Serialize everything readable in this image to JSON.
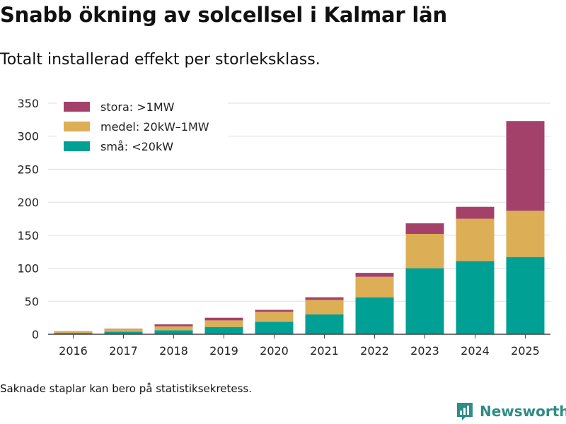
{
  "title": "Snabb ökning av solcellsel i Kalmar län",
  "subtitle": "Totalt installerad effekt per storleksklass.",
  "note": "Saknade staplar kan bero på statistiksekretess.",
  "brand": {
    "name": "Newsworthy",
    "icon": "newsworthy-logo-icon"
  },
  "chart_data": {
    "type": "bar",
    "stacked": true,
    "title": "Snabb ökning av solcellsel i Kalmar län",
    "subtitle": "Totalt installerad effekt per storleksklass.",
    "xlabel": "",
    "ylabel": "",
    "ylim": [
      0,
      350
    ],
    "yticks": [
      0,
      50,
      100,
      150,
      200,
      250,
      300,
      350
    ],
    "grid": true,
    "legend_position": "top-left",
    "categories": [
      "2016",
      "2017",
      "2018",
      "2019",
      "2020",
      "2021",
      "2022",
      "2023",
      "2024",
      "2025"
    ],
    "series": [
      {
        "name": "små: <20kW",
        "color": "#00a095",
        "values": [
          2,
          4,
          6,
          11,
          19,
          30,
          56,
          100,
          111,
          117
        ]
      },
      {
        "name": "medel: 20kW–1MW",
        "color": "#dcae56",
        "values": [
          2,
          4,
          6,
          10,
          15,
          22,
          31,
          52,
          64,
          70
        ]
      },
      {
        "name": "stora: >1MW",
        "color": "#a4416a",
        "values": [
          0.5,
          0.5,
          3,
          4,
          3,
          4,
          6,
          16,
          18,
          136
        ]
      }
    ],
    "legend_order": [
      "stora: >1MW",
      "medel: 20kW–1MW",
      "små: <20kW"
    ]
  }
}
